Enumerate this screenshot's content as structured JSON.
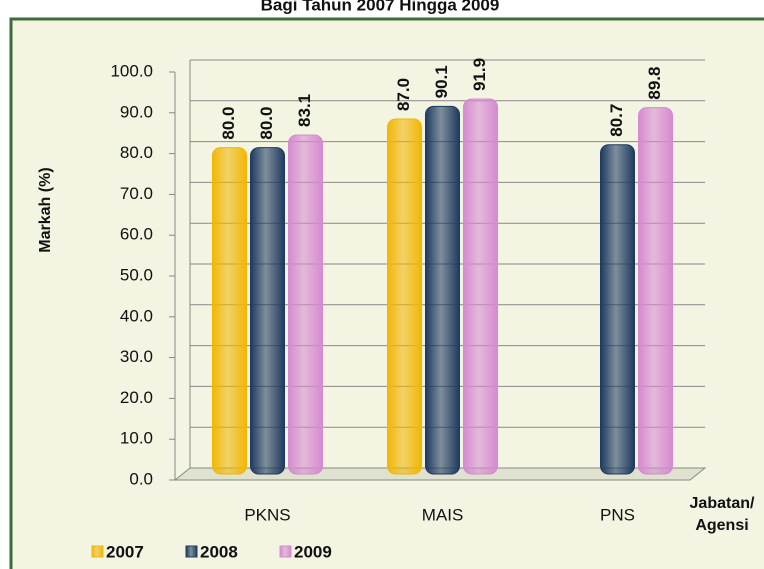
{
  "chart_data": {
    "type": "bar",
    "title": "Bagi Tahun 2007 Hingga 2009",
    "y_label": "Markah (%)",
    "x_label": [
      "Jabatan/",
      "Agensi"
    ],
    "categories": [
      "PKNS",
      "MAIS",
      "PNS"
    ],
    "series": [
      {
        "name": "2007",
        "color": "#f2b705",
        "values": [
          80.0,
          87.0,
          null
        ],
        "value_labels": [
          "80.0",
          "87.0",
          null
        ]
      },
      {
        "name": "2008",
        "color": "#1f3a60",
        "values": [
          80.0,
          90.1,
          80.7
        ],
        "value_labels": [
          "80.0",
          "90.1",
          "80.7"
        ]
      },
      {
        "name": "2009",
        "color": "#d68ad0",
        "values": [
          83.1,
          91.9,
          89.8
        ],
        "value_labels": [
          "83.1",
          "91.9",
          "89.8"
        ]
      }
    ],
    "ylim": [
      0,
      100
    ],
    "yticks": [
      {
        "value": 0,
        "label": "0.0"
      },
      {
        "value": 10,
        "label": "10.0"
      },
      {
        "value": 20,
        "label": "20.0"
      },
      {
        "value": 30,
        "label": "30.0"
      },
      {
        "value": 40,
        "label": "40.0"
      },
      {
        "value": 50,
        "label": "50.0"
      },
      {
        "value": 60,
        "label": "60.0"
      },
      {
        "value": 70,
        "label": "70.0"
      },
      {
        "value": 80,
        "label": "80.0"
      },
      {
        "value": 90,
        "label": "90.0"
      },
      {
        "value": 100,
        "label": "100.0"
      }
    ],
    "grid": true,
    "legend": "bottom-left"
  }
}
